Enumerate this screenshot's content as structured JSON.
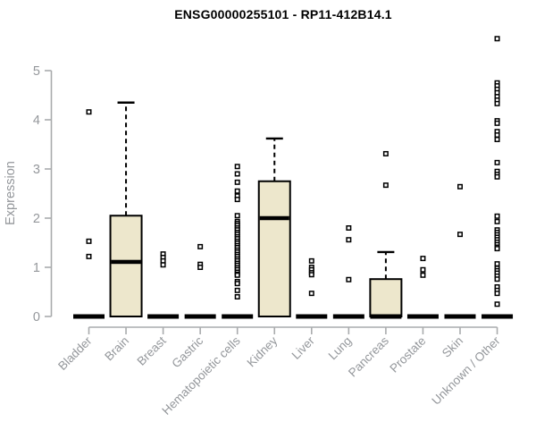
{
  "title": "ENSG00000255101 - RP11-412B14.1",
  "colors": {
    "background": "#FFFFFF",
    "box_fill": "#EDE7CC",
    "box_border": "#000000",
    "median": "#000000",
    "outlier": "#000000",
    "axis": "#A9ABAD",
    "axis_text": "#94979B",
    "title_text": "#000000"
  },
  "chart_data": {
    "type": "boxplot",
    "title": "ENSG00000255101 - RP11-412B14.1",
    "xlabel": "",
    "ylabel": "Expression",
    "ylim": [
      0,
      5.7
    ],
    "yticks": [
      0,
      1,
      2,
      3,
      4,
      5
    ],
    "grid": false,
    "legend": "none",
    "categories": [
      "Bladder",
      "Brain",
      "Breast",
      "Gastric",
      "Hematopoietic cells",
      "Kidney",
      "Liver",
      "Lung",
      "Pancreas",
      "Prostate",
      "Skin",
      "Unknown / Other"
    ],
    "series": [
      {
        "name": "Bladder",
        "q1": 0,
        "median": 0,
        "q3": 0,
        "whisker_low": 0,
        "whisker_high": 0,
        "outliers": [
          4.16,
          1.53,
          1.22
        ]
      },
      {
        "name": "Brain",
        "q1": 0,
        "median": 1.11,
        "q3": 2.05,
        "whisker_low": 0,
        "whisker_high": 4.35,
        "outliers": []
      },
      {
        "name": "Breast",
        "q1": 0,
        "median": 0,
        "q3": 0,
        "whisker_low": 0,
        "whisker_high": 0,
        "outliers": [
          1.27,
          1.2,
          1.13,
          1.05
        ]
      },
      {
        "name": "Gastric",
        "q1": 0,
        "median": 0,
        "q3": 0,
        "whisker_low": 0,
        "whisker_high": 0,
        "outliers": [
          1.42,
          1.06,
          1.0
        ]
      },
      {
        "name": "Hematopoietic cells",
        "q1": 0,
        "median": 0,
        "q3": 0,
        "whisker_low": 0,
        "whisker_high": 0,
        "outliers": [
          3.05,
          2.9,
          2.73,
          2.55,
          2.45,
          2.38,
          2.05,
          1.93,
          1.89,
          1.85,
          1.8,
          1.76,
          1.71,
          1.67,
          1.62,
          1.58,
          1.53,
          1.49,
          1.44,
          1.4,
          1.35,
          1.31,
          1.26,
          1.22,
          1.17,
          1.13,
          1.08,
          1.04,
          0.99,
          0.95,
          0.9,
          0.86,
          0.84,
          0.71,
          0.67,
          0.53,
          0.4
        ]
      },
      {
        "name": "Kidney",
        "q1": 0,
        "median": 2.0,
        "q3": 2.75,
        "whisker_low": 0,
        "whisker_high": 3.62,
        "outliers": []
      },
      {
        "name": "Liver",
        "q1": 0,
        "median": 0,
        "q3": 0,
        "whisker_low": 0,
        "whisker_high": 0,
        "outliers": [
          1.13,
          1.0,
          0.95,
          0.89,
          0.85,
          0.47
        ]
      },
      {
        "name": "Lung",
        "q1": 0,
        "median": 0,
        "q3": 0,
        "whisker_low": 0,
        "whisker_high": 0,
        "outliers": [
          1.8,
          1.56,
          0.75
        ]
      },
      {
        "name": "Pancreas",
        "q1": 0,
        "median": 0,
        "q3": 0.76,
        "whisker_low": 0,
        "whisker_high": 1.31,
        "outliers": [
          3.31,
          2.67
        ]
      },
      {
        "name": "Prostate",
        "q1": 0,
        "median": 0,
        "q3": 0,
        "whisker_low": 0,
        "whisker_high": 0,
        "outliers": [
          1.18,
          0.95,
          0.84
        ]
      },
      {
        "name": "Skin",
        "q1": 0,
        "median": 0,
        "q3": 0,
        "whisker_low": 0,
        "whisker_high": 0,
        "outliers": [
          2.64,
          1.67
        ]
      },
      {
        "name": "Unknown / Other",
        "q1": 0,
        "median": 0,
        "q3": 0,
        "whisker_low": 0,
        "whisker_high": 0,
        "outliers": [
          5.65,
          4.75,
          4.69,
          4.62,
          4.55,
          4.47,
          4.4,
          4.33,
          3.98,
          3.93,
          3.76,
          3.69,
          3.6,
          3.13,
          2.95,
          2.89,
          2.84,
          2.04,
          1.93,
          1.76,
          1.71,
          1.66,
          1.61,
          1.56,
          1.51,
          1.46,
          1.41,
          1.38,
          1.07,
          0.98,
          0.93,
          0.88,
          0.82,
          0.76,
          0.6,
          0.53,
          0.47,
          0.25
        ]
      }
    ]
  }
}
